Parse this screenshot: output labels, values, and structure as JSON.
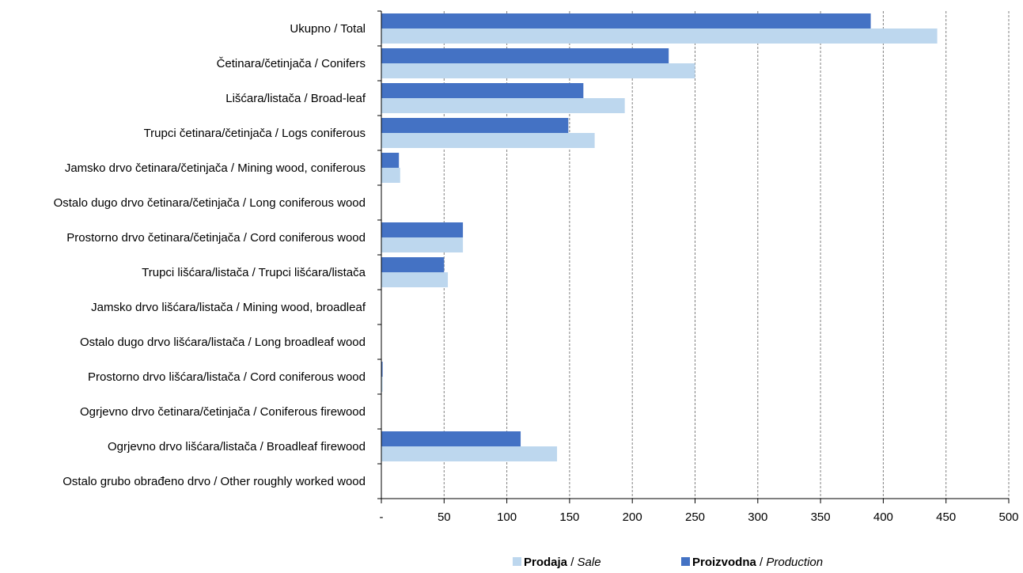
{
  "chart_data": {
    "type": "bar",
    "orientation": "horizontal",
    "categories": [
      "Ukupno / Total",
      "Četinara/četinjača / Conifers",
      "Lišćara/listača / Broad-leaf",
      "Trupci četinara/četinjača / Logs coniferous",
      "Jamsko drvo četinara/četinjača / Mining wood, coniferous",
      "Ostalo dugo drvo četinara/četinjača / Long coniferous wood",
      "Prostorno drvo četinara/četinjača / Cord coniferous wood",
      "Trupci lišćara/listača / Trupci lišćara/listača",
      "Jamsko drvo lišćara/listača / Mining wood, broadleaf",
      "Ostalo dugo drvo lišćara/listača / Long broadleaf wood",
      "Prostorno drvo lišćara/listača / Cord coniferous wood",
      "Ogrjevno drvo četinara/četinjača / Coniferous firewood",
      "Ogrjevno drvo lišćara/listača / Broadleaf firewood",
      "Ostalo grubo obrađeno drvo / Other roughly worked wood"
    ],
    "series": [
      {
        "name": "Proizvodna / Production",
        "name_bold": "Proizvodna",
        "name_italic": "Production",
        "color": "#4472C4",
        "values": [
          390,
          229,
          161,
          149,
          14,
          0,
          65,
          50,
          0,
          0,
          1,
          0,
          111,
          0
        ]
      },
      {
        "name": "Prodaja / Sale",
        "name_bold": "Prodaja",
        "name_italic": "Sale",
        "color": "#BDD7EE",
        "values": [
          443,
          250,
          194,
          170,
          15,
          0,
          65,
          53,
          0,
          0,
          1,
          0,
          140,
          0
        ]
      }
    ],
    "xlim": [
      0,
      500
    ],
    "xticks": [
      "-",
      "50",
      "100",
      "150",
      "200",
      "250",
      "300",
      "350",
      "400",
      "450",
      "500"
    ],
    "grid": "vertical-dashed",
    "legend_position": "bottom",
    "legend_order": [
      1,
      0
    ]
  }
}
